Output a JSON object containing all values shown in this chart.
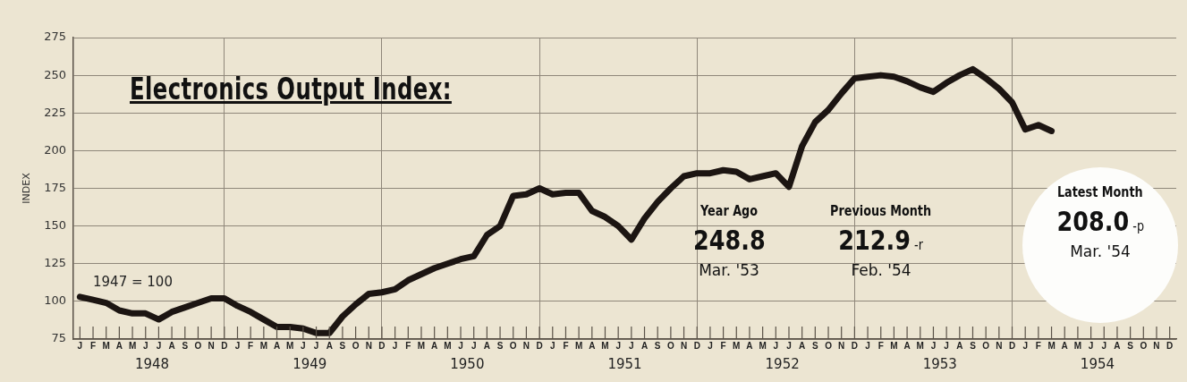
{
  "chart_data": {
    "type": "line",
    "title": "Electronics Output Index:",
    "ylabel": "INDEX",
    "categories": [
      "J",
      "F",
      "M",
      "A",
      "M",
      "J",
      "J",
      "A",
      "S",
      "O",
      "N",
      "D",
      "J",
      "F",
      "M",
      "A",
      "M",
      "J",
      "J",
      "A",
      "S",
      "O",
      "N",
      "D",
      "J",
      "F",
      "M",
      "A",
      "M",
      "J",
      "J",
      "A",
      "S",
      "O",
      "N",
      "D",
      "J",
      "F",
      "M",
      "A",
      "M",
      "J",
      "J",
      "A",
      "S",
      "O",
      "N",
      "D",
      "J",
      "F",
      "M",
      "A",
      "M",
      "J",
      "J",
      "A",
      "S",
      "O",
      "N",
      "D",
      "J",
      "F",
      "M",
      "A",
      "M",
      "J",
      "J",
      "A",
      "S",
      "O",
      "N",
      "D",
      "J",
      "F",
      "M",
      "A",
      "M",
      "J",
      "J",
      "A",
      "S",
      "O",
      "N",
      "D"
    ],
    "series": [
      {
        "color": "#1c1512",
        "values": [
          103,
          101,
          99,
          94,
          92,
          92,
          88,
          93,
          96,
          99,
          102,
          102,
          97,
          93,
          88,
          83,
          83,
          82,
          79,
          79,
          90,
          98,
          105,
          106,
          108,
          114,
          118,
          122,
          125,
          128,
          130,
          144,
          150,
          170,
          171,
          175,
          171,
          172,
          172,
          160,
          156,
          150,
          141,
          155,
          166,
          175,
          183,
          185,
          185,
          187,
          186,
          181,
          183,
          185,
          176,
          203,
          219,
          227,
          238,
          248,
          249,
          250,
          249,
          246,
          242,
          239,
          245,
          250,
          254,
          248,
          241,
          232,
          214,
          217,
          213,
          null,
          null,
          null,
          null,
          null,
          null,
          null,
          null,
          null
        ]
      }
    ],
    "ylim": [
      75,
      275
    ],
    "yticks": [
      75,
      100,
      125,
      150,
      175,
      200,
      225,
      250,
      275
    ],
    "grid": true,
    "legend": false,
    "marker": "none",
    "line_style": "solid",
    "annotations": [
      "1947 = 100",
      "1948",
      "1949",
      "1950",
      "1951",
      "1952",
      "1953",
      "1954",
      "Year Ago",
      "248.8",
      "Mar. '53",
      "Previous Month",
      "212.9",
      "-r",
      "Feb. '54",
      "Latest Month",
      "208.0",
      "-p",
      "Mar. '54"
    ]
  }
}
